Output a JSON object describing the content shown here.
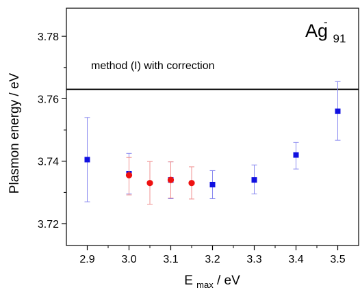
{
  "chart_data": {
    "type": "scatter",
    "title": "",
    "annotation_label": {
      "base": "Ag",
      "superscript": "-",
      "subscript": "91"
    },
    "xlabel": {
      "main": "E",
      "subscript": "max",
      "suffix": " / eV"
    },
    "ylabel": "Plasmon energy / eV",
    "xlim": [
      2.85,
      3.55
    ],
    "ylim": [
      3.713,
      3.789
    ],
    "x_ticks": [
      "2.9",
      "3.0",
      "3.1",
      "3.2",
      "3.3",
      "3.4",
      "3.5"
    ],
    "y_ticks": [
      "3.72",
      "3.74",
      "3.76",
      "3.78"
    ],
    "grid": false,
    "reference_line": {
      "y": 3.763,
      "label": "method (I) with correction",
      "color": "#000000"
    },
    "series": [
      {
        "marker": "square",
        "color": "#1010e0",
        "error_color": "#8a8af0",
        "points": [
          {
            "x": 2.9,
            "y": 3.7405,
            "err_low": 3.727,
            "err_high": 3.754
          },
          {
            "x": 3.0,
            "y": 3.736,
            "err_low": 3.7295,
            "err_high": 3.7425
          },
          {
            "x": 3.1,
            "y": 3.734,
            "err_low": 3.728,
            "err_high": 3.7398
          },
          {
            "x": 3.2,
            "y": 3.7325,
            "err_low": 3.728,
            "err_high": 3.737
          },
          {
            "x": 3.3,
            "y": 3.734,
            "err_low": 3.7295,
            "err_high": 3.7388
          },
          {
            "x": 3.4,
            "y": 3.742,
            "err_low": 3.7375,
            "err_high": 3.746
          },
          {
            "x": 3.5,
            "y": 3.756,
            "err_low": 3.7467,
            "err_high": 3.7655
          }
        ]
      },
      {
        "marker": "circle",
        "color": "#ee1111",
        "error_color": "#f09090",
        "points": [
          {
            "x": 3.0,
            "y": 3.7355,
            "err_low": 3.7292,
            "err_high": 3.7412
          },
          {
            "x": 3.05,
            "y": 3.733,
            "err_low": 3.7262,
            "err_high": 3.7399
          },
          {
            "x": 3.1,
            "y": 3.734,
            "err_low": 3.7282,
            "err_high": 3.7398
          },
          {
            "x": 3.15,
            "y": 3.733,
            "err_low": 3.7279,
            "err_high": 3.7382
          }
        ]
      }
    ]
  }
}
